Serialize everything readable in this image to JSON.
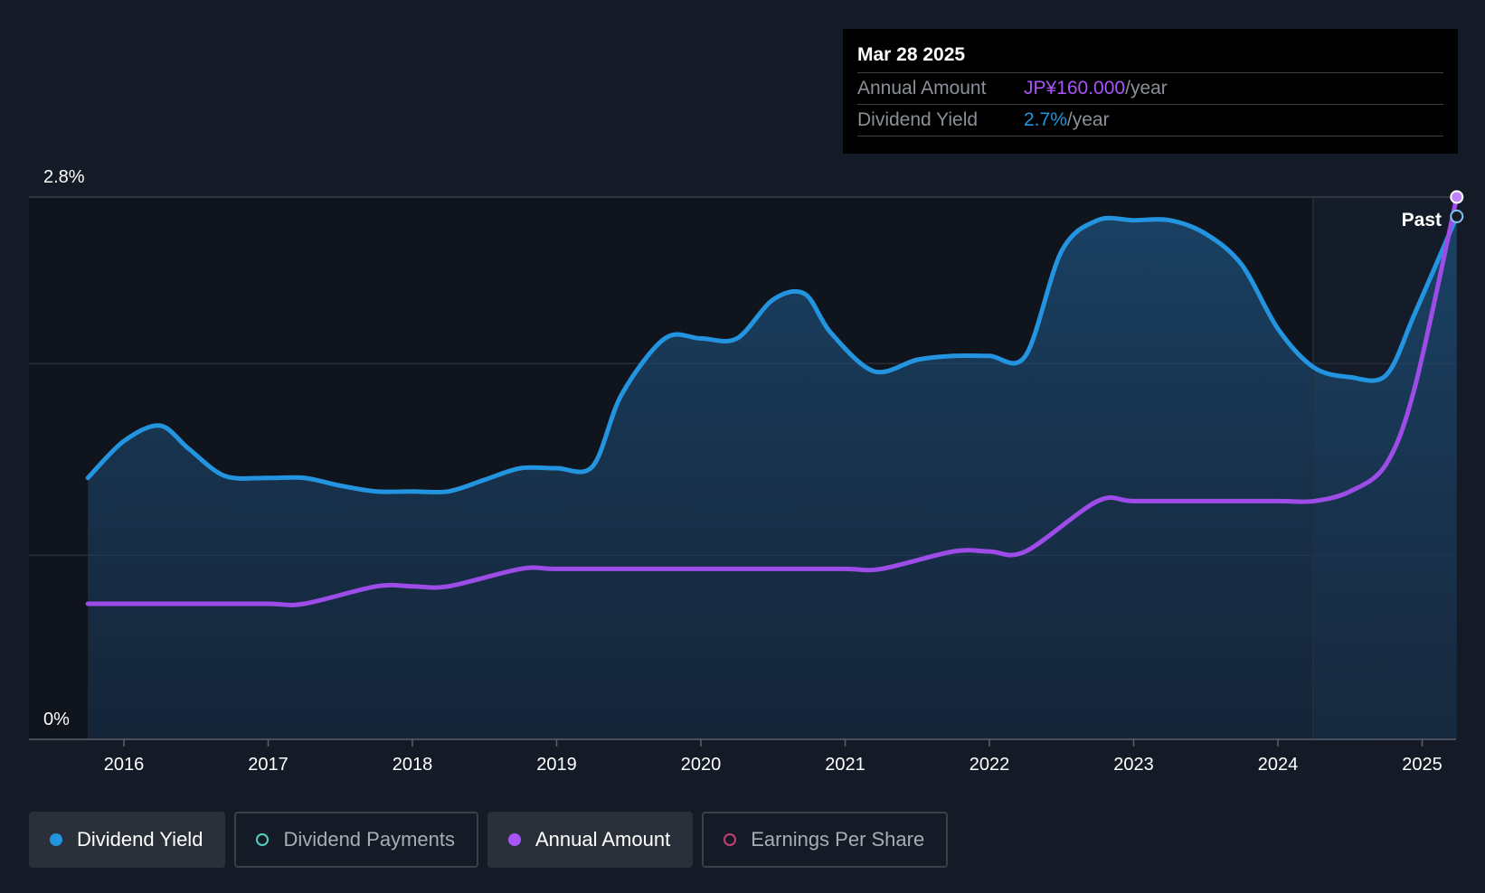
{
  "chart_data": {
    "type": "area",
    "x_ticks": [
      "2016",
      "2017",
      "2018",
      "2019",
      "2020",
      "2021",
      "2022",
      "2023",
      "2024",
      "2025"
    ],
    "y_tick_labels": [
      "2.8%",
      "0%"
    ],
    "ylim": [
      0,
      2.8
    ],
    "forecast_label": "Past",
    "series": [
      {
        "name": "Dividend Yield",
        "color": "#2394df",
        "area": true,
        "points": [
          [
            2015.75,
            1.35
          ],
          [
            2016.0,
            1.54
          ],
          [
            2016.25,
            1.62
          ],
          [
            2016.45,
            1.5
          ],
          [
            2016.7,
            1.36
          ],
          [
            2017.0,
            1.35
          ],
          [
            2017.25,
            1.35
          ],
          [
            2017.5,
            1.31
          ],
          [
            2017.75,
            1.28
          ],
          [
            2018.0,
            1.28
          ],
          [
            2018.25,
            1.28
          ],
          [
            2018.5,
            1.34
          ],
          [
            2018.75,
            1.4
          ],
          [
            2019.0,
            1.4
          ],
          [
            2019.25,
            1.41
          ],
          [
            2019.45,
            1.78
          ],
          [
            2019.75,
            2.07
          ],
          [
            2020.0,
            2.07
          ],
          [
            2020.25,
            2.07
          ],
          [
            2020.5,
            2.27
          ],
          [
            2020.72,
            2.3
          ],
          [
            2020.9,
            2.1
          ],
          [
            2021.2,
            1.9
          ],
          [
            2021.5,
            1.96
          ],
          [
            2021.75,
            1.98
          ],
          [
            2022.0,
            1.98
          ],
          [
            2022.25,
            1.98
          ],
          [
            2022.5,
            2.52
          ],
          [
            2022.75,
            2.68
          ],
          [
            2023.0,
            2.68
          ],
          [
            2023.25,
            2.68
          ],
          [
            2023.5,
            2.61
          ],
          [
            2023.75,
            2.45
          ],
          [
            2024.0,
            2.12
          ],
          [
            2024.25,
            1.92
          ],
          [
            2024.5,
            1.87
          ],
          [
            2024.75,
            1.88
          ],
          [
            2024.95,
            2.2
          ],
          [
            2025.24,
            2.7
          ]
        ]
      },
      {
        "name": "Annual Amount",
        "color": "#9e4ce8",
        "area": false,
        "points": [
          [
            2015.75,
            0.7
          ],
          [
            2016.0,
            0.7
          ],
          [
            2016.5,
            0.7
          ],
          [
            2017.0,
            0.7
          ],
          [
            2017.25,
            0.7
          ],
          [
            2017.75,
            0.79
          ],
          [
            2018.0,
            0.79
          ],
          [
            2018.25,
            0.79
          ],
          [
            2018.75,
            0.88
          ],
          [
            2019.0,
            0.88
          ],
          [
            2019.5,
            0.88
          ],
          [
            2020.0,
            0.88
          ],
          [
            2020.5,
            0.88
          ],
          [
            2021.0,
            0.88
          ],
          [
            2021.25,
            0.88
          ],
          [
            2021.75,
            0.97
          ],
          [
            2022.0,
            0.97
          ],
          [
            2022.25,
            0.97
          ],
          [
            2022.75,
            1.23
          ],
          [
            2023.0,
            1.23
          ],
          [
            2023.5,
            1.23
          ],
          [
            2024.0,
            1.23
          ],
          [
            2024.25,
            1.23
          ],
          [
            2024.5,
            1.28
          ],
          [
            2024.75,
            1.42
          ],
          [
            2024.95,
            1.82
          ],
          [
            2025.24,
            2.8
          ]
        ]
      }
    ],
    "tooltip": {
      "date": "Mar 28 2025",
      "rows": [
        {
          "label": "Annual Amount",
          "value": "JP¥160.000",
          "unit": "/year",
          "color": "#a855f7"
        },
        {
          "label": "Dividend Yield",
          "value": "2.7%",
          "unit": "/year",
          "color": "#2394df"
        }
      ]
    },
    "legend": [
      {
        "label": "Dividend Yield",
        "color": "#2394df",
        "active": true,
        "filled": true
      },
      {
        "label": "Dividend Payments",
        "color": "#4fd1c5",
        "active": false,
        "filled": false
      },
      {
        "label": "Annual Amount",
        "color": "#a855f7",
        "active": true,
        "filled": true
      },
      {
        "label": "Earnings Per Share",
        "color": "#c2407a",
        "active": false,
        "filled": false
      }
    ]
  }
}
